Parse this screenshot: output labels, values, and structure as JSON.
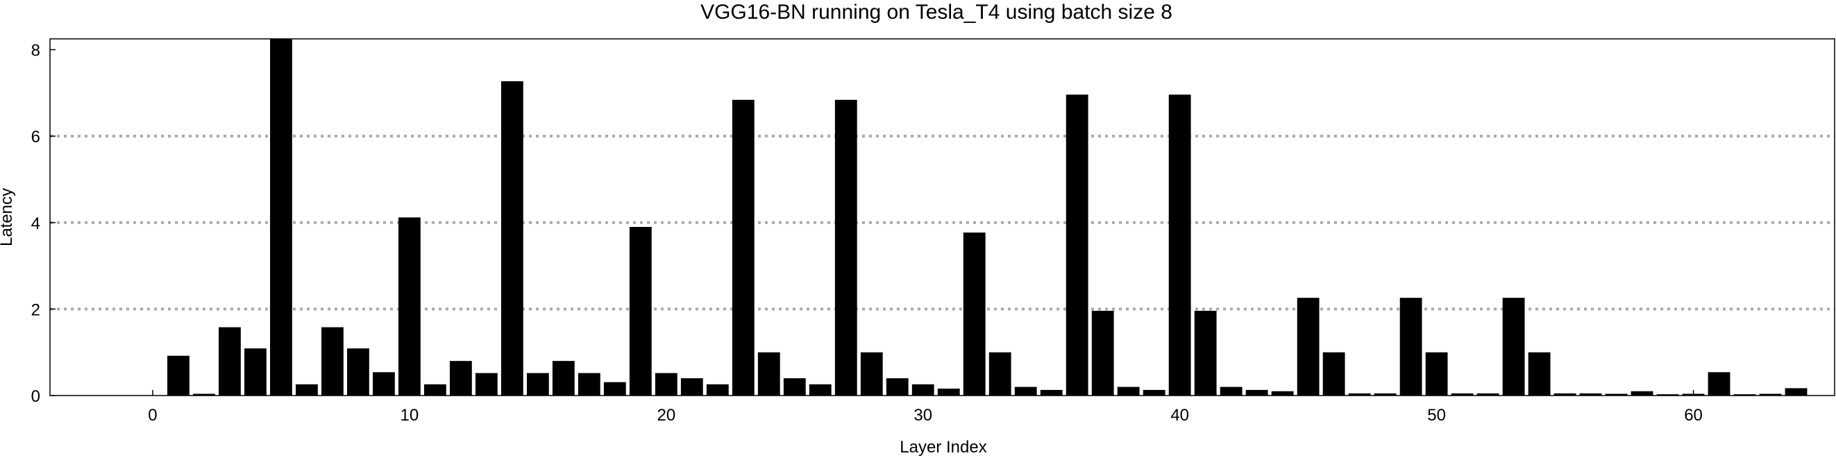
{
  "chart_data": {
    "type": "bar",
    "title": "VGG16-BN running on Tesla_T4 using batch size 8",
    "xlabel": "Layer Index",
    "ylabel": "Latency",
    "xlim": [
      -4,
      65.5
    ],
    "ylim": [
      0,
      8.25
    ],
    "xticks": [
      0,
      10,
      20,
      30,
      40,
      50,
      60
    ],
    "yticks": [
      0,
      2,
      4,
      6,
      8
    ],
    "gridlines_y": [
      2,
      4,
      6
    ],
    "grid": "horizontal dotted",
    "legend": "none",
    "bar_color": "#000000",
    "grid_color": "#aaaaaa",
    "x": [
      1,
      2,
      3,
      4,
      5,
      6,
      7,
      8,
      9,
      10,
      11,
      12,
      13,
      14,
      15,
      16,
      17,
      18,
      19,
      20,
      21,
      22,
      23,
      24,
      25,
      26,
      27,
      28,
      29,
      30,
      31,
      32,
      33,
      34,
      35,
      36,
      37,
      38,
      39,
      40,
      41,
      42,
      43,
      44,
      45,
      46,
      47,
      48,
      49,
      50,
      51,
      52,
      53,
      54,
      55,
      56,
      57,
      58,
      59,
      60,
      61,
      62,
      63,
      64
    ],
    "values": [
      0.92,
      0.04,
      1.58,
      1.09,
      8.3,
      0.26,
      1.58,
      1.09,
      0.54,
      4.12,
      0.26,
      0.8,
      0.52,
      7.27,
      0.52,
      0.8,
      0.52,
      0.31,
      3.9,
      0.52,
      0.4,
      0.26,
      6.84,
      1.0,
      0.4,
      0.26,
      6.84,
      1.0,
      0.4,
      0.26,
      0.16,
      3.77,
      1.0,
      0.2,
      0.13,
      6.96,
      1.96,
      0.2,
      0.13,
      6.96,
      1.96,
      0.2,
      0.13,
      0.1,
      2.26,
      1.0,
      0.05,
      0.05,
      2.26,
      1.0,
      0.05,
      0.05,
      2.26,
      1.0,
      0.05,
      0.05,
      0.04,
      0.1,
      0.03,
      0.04,
      0.54,
      0.03,
      0.04,
      0.17
    ]
  }
}
